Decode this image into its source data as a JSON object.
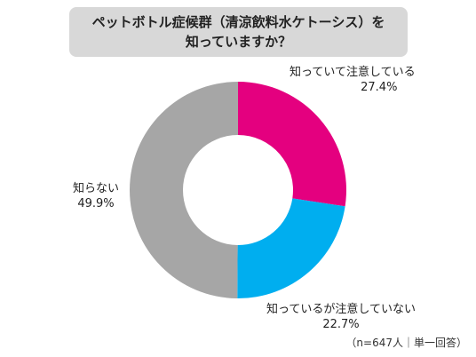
{
  "title": {
    "line1": "ペットボトル症候群（清涼飲料水ケトーシス）を",
    "line2": "知っていますか？"
  },
  "chart_data": {
    "type": "pie",
    "donut": true,
    "categories": [
      "知っていて注意している",
      "知っているが注意していない",
      "知らない"
    ],
    "values": [
      27.4,
      22.7,
      49.9
    ],
    "value_labels": [
      "27.4%",
      "22.7%",
      "49.9%"
    ],
    "colors": [
      "#e4007f",
      "#00aeef",
      "#a6a6a6"
    ],
    "start_angle": "12 o'clock",
    "direction": "clockwise"
  },
  "note": "（n=647人｜単一回答）"
}
